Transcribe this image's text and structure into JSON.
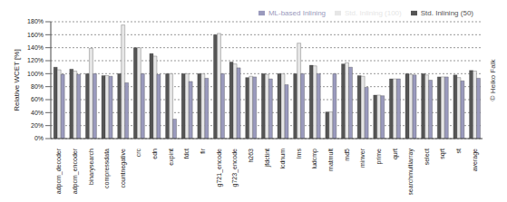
{
  "chart_data": {
    "type": "bar",
    "y_label": "Relative WCET [%]",
    "annotations": [
      "© Heiko Falk"
    ],
    "categories": [
      "adpcm_decoder",
      "adpcm_encoder",
      "binarysearch",
      "compressdata",
      "countnegative",
      "crc",
      "edn",
      "expint",
      "fdct",
      "fir",
      "g721_encode",
      "g723_encode",
      "h263",
      "jfdctint",
      "lcdnum",
      "lms",
      "ludcmp",
      "matmult",
      "md5",
      "minver",
      "prime",
      "qurt",
      "searchmultiarray",
      "select",
      "sqrt",
      "st",
      "average"
    ],
    "series": [
      {
        "name": "Std. Inlining (50)",
        "color": "#555555",
        "values": [
          110,
          107,
          100,
          97,
          100,
          140,
          131,
          100,
          100,
          100,
          160,
          118,
          94,
          100,
          100,
          100,
          113,
          41,
          115,
          97,
          67,
          92,
          100,
          100,
          95,
          98,
          105
        ]
      },
      {
        "name": "Std. Inlining (100)",
        "color": "#e6e6e6",
        "values": [
          106,
          104,
          139,
          97,
          175,
          140,
          127,
          100,
          100,
          100,
          162,
          115,
          96,
          99,
          100,
          147,
          112,
          41,
          117,
          96,
          67,
          92,
          99,
          98,
          95,
          94,
          104
        ]
      },
      {
        "name": "ML-based Inlining",
        "color": "#9a9abd",
        "values": [
          99,
          99,
          100,
          96,
          86,
          100,
          99,
          30,
          88,
          93,
          100,
          109,
          95,
          92,
          83,
          100,
          100,
          100,
          110,
          79,
          66,
          92,
          98,
          90,
          95,
          89,
          93
        ]
      }
    ],
    "ylim": [
      0,
      180
    ],
    "yticks": [
      {
        "value": 0,
        "label": "0%"
      },
      {
        "value": 20,
        "label": "20%"
      },
      {
        "value": 40,
        "label": "40%"
      },
      {
        "value": 60,
        "label": "60%"
      },
      {
        "value": 80,
        "label": "80%"
      },
      {
        "value": 100,
        "label": "100%"
      },
      {
        "value": 120,
        "label": "120%"
      },
      {
        "value": 140,
        "label": "140%"
      },
      {
        "value": 160,
        "label": "160%"
      },
      {
        "value": 180,
        "label": "180%"
      }
    ],
    "grid": true,
    "legend": "upper right"
  }
}
